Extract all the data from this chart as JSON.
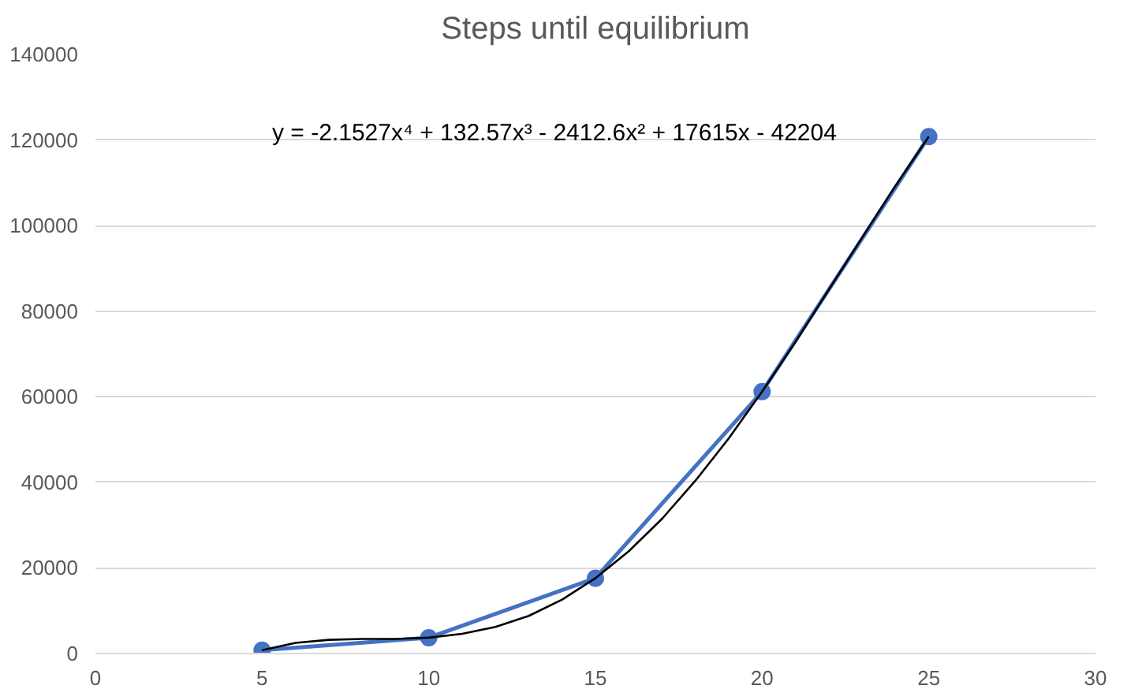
{
  "chart_data": {
    "type": "line",
    "title": "Steps until equilibrium",
    "x": [
      5,
      10,
      15,
      20,
      25
    ],
    "series": [
      {
        "color": "#4472c4",
        "values": [
          800,
          3700,
          17600,
          61200,
          120800
        ],
        "marker": "circle",
        "line_style": "solid"
      },
      {
        "type": "line",
        "color": "#000000",
        "x": [
          5,
          6,
          7,
          8,
          9,
          10,
          11,
          12,
          13,
          14,
          15,
          16,
          17,
          18,
          19,
          20,
          21,
          22,
          23,
          24,
          25
        ],
        "values": [
          800,
          2500,
          3200,
          3400,
          3400,
          3700,
          4600,
          6200,
          8800,
          12600,
          17600,
          23900,
          31500,
          40400,
          50300,
          61200,
          72800,
          85000,
          97200,
          109300,
          120800
        ],
        "marker": "none",
        "line_style": "solid"
      }
    ],
    "annotations": [
      "y = -2.1527x⁴ + 132.57x³ - 2412.6x² + 17615x - 42204"
    ],
    "xlim": [
      0,
      30
    ],
    "xticks": [
      0,
      5,
      10,
      15,
      20,
      25,
      30
    ],
    "ylim": [
      0,
      140000
    ],
    "yticks": [
      0,
      20000,
      40000,
      60000,
      80000,
      100000,
      120000,
      140000
    ],
    "grid": "y"
  }
}
